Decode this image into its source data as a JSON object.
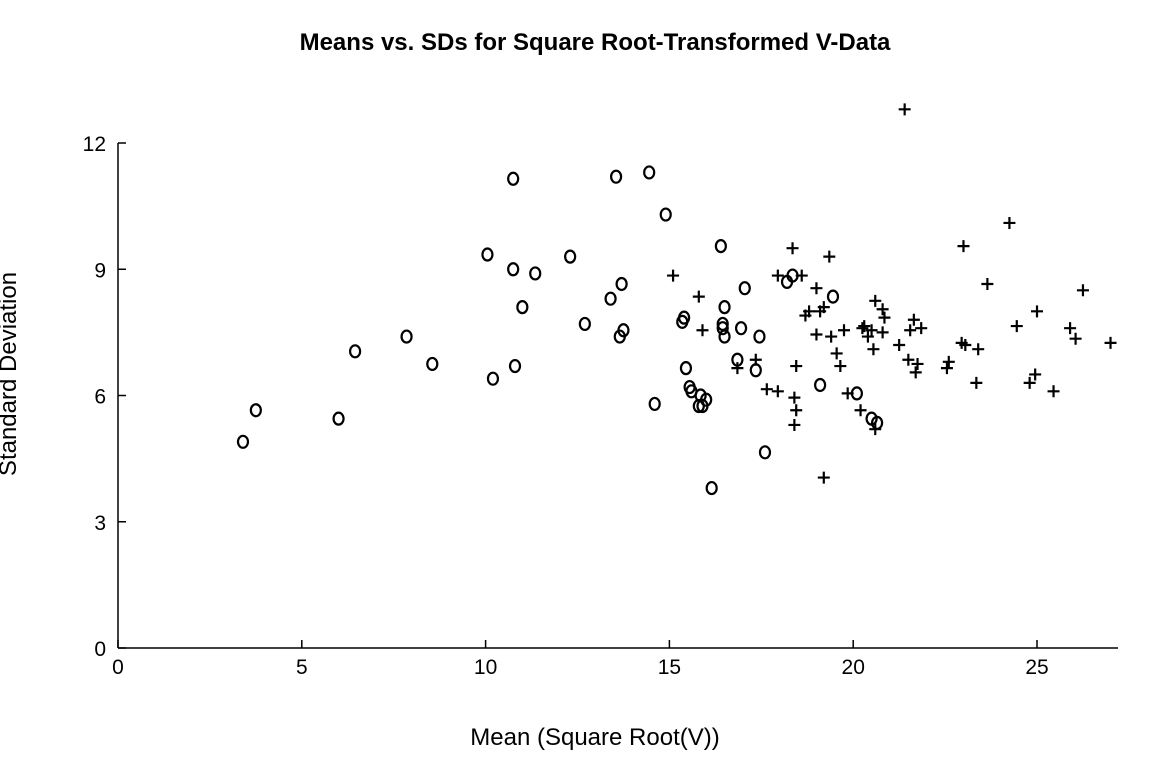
{
  "chart_data": {
    "type": "scatter",
    "title": "Means vs. SDs for Square Root-Transformed V-Data",
    "xlabel": "Mean (Square Root(V))",
    "ylabel": "Standard Deviation",
    "xlim": [
      0,
      27.3
    ],
    "ylim": [
      0,
      12.8
    ],
    "x_ticks": [
      0,
      5,
      10,
      15,
      20,
      25
    ],
    "y_ticks": [
      0,
      3,
      6,
      9,
      12
    ],
    "x_tick_labels": [
      "0",
      "5",
      "10",
      "15",
      "20",
      "25"
    ],
    "y_tick_labels": [
      "0",
      "3",
      "6",
      "9",
      "12"
    ],
    "grid": false,
    "legend": "none",
    "series": [
      {
        "marker": "o",
        "points": [
          [
            3.4,
            4.9
          ],
          [
            3.75,
            5.65
          ],
          [
            6.0,
            5.45
          ],
          [
            6.45,
            7.05
          ],
          [
            7.85,
            7.4
          ],
          [
            8.55,
            6.75
          ],
          [
            10.05,
            9.35
          ],
          [
            10.2,
            6.4
          ],
          [
            10.75,
            11.15
          ],
          [
            10.75,
            9.0
          ],
          [
            10.8,
            6.7
          ],
          [
            11.0,
            8.1
          ],
          [
            11.35,
            8.9
          ],
          [
            12.3,
            9.3
          ],
          [
            12.7,
            7.7
          ],
          [
            13.4,
            8.3
          ],
          [
            13.55,
            11.2
          ],
          [
            13.65,
            7.4
          ],
          [
            13.7,
            8.65
          ],
          [
            13.75,
            7.55
          ],
          [
            14.45,
            11.3
          ],
          [
            14.6,
            5.8
          ],
          [
            14.9,
            10.3
          ],
          [
            15.35,
            7.75
          ],
          [
            15.4,
            7.85
          ],
          [
            15.45,
            6.65
          ],
          [
            15.55,
            6.2
          ],
          [
            15.6,
            6.1
          ],
          [
            15.8,
            5.75
          ],
          [
            15.85,
            6.0
          ],
          [
            15.9,
            5.75
          ],
          [
            16.0,
            5.9
          ],
          [
            16.15,
            3.8
          ],
          [
            16.4,
            9.55
          ],
          [
            16.45,
            7.7
          ],
          [
            16.45,
            7.6
          ],
          [
            16.5,
            8.1
          ],
          [
            16.5,
            7.4
          ],
          [
            16.85,
            6.85
          ],
          [
            16.95,
            7.6
          ],
          [
            17.05,
            8.55
          ],
          [
            17.35,
            6.6
          ],
          [
            17.45,
            7.4
          ],
          [
            17.6,
            4.65
          ],
          [
            18.2,
            8.7
          ],
          [
            18.35,
            8.85
          ],
          [
            19.1,
            6.25
          ],
          [
            19.45,
            8.35
          ],
          [
            20.1,
            6.05
          ],
          [
            20.5,
            5.45
          ],
          [
            20.65,
            5.35
          ]
        ]
      },
      {
        "marker": "+",
        "points": [
          [
            15.1,
            8.85
          ],
          [
            15.8,
            8.35
          ],
          [
            15.9,
            7.55
          ],
          [
            16.85,
            6.65
          ],
          [
            17.35,
            6.85
          ],
          [
            17.65,
            6.15
          ],
          [
            17.95,
            6.1
          ],
          [
            17.95,
            8.85
          ],
          [
            18.35,
            9.5
          ],
          [
            18.4,
            5.95
          ],
          [
            18.45,
            6.7
          ],
          [
            18.4,
            5.3
          ],
          [
            18.45,
            5.65
          ],
          [
            18.6,
            8.85
          ],
          [
            18.7,
            7.9
          ],
          [
            18.8,
            8.0
          ],
          [
            19.0,
            8.55
          ],
          [
            19.0,
            7.45
          ],
          [
            19.1,
            8.0
          ],
          [
            19.2,
            4.05
          ],
          [
            19.2,
            8.1
          ],
          [
            19.35,
            9.3
          ],
          [
            19.4,
            7.4
          ],
          [
            19.55,
            7.0
          ],
          [
            19.65,
            6.7
          ],
          [
            19.75,
            7.55
          ],
          [
            19.85,
            6.05
          ],
          [
            20.2,
            5.65
          ],
          [
            20.25,
            7.6
          ],
          [
            20.3,
            7.65
          ],
          [
            20.4,
            7.4
          ],
          [
            20.5,
            7.55
          ],
          [
            20.55,
            7.1
          ],
          [
            20.6,
            8.25
          ],
          [
            20.6,
            5.2
          ],
          [
            20.8,
            8.05
          ],
          [
            20.8,
            7.5
          ],
          [
            20.85,
            7.85
          ],
          [
            21.25,
            7.2
          ],
          [
            21.4,
            12.8
          ],
          [
            21.5,
            6.85
          ],
          [
            21.55,
            7.55
          ],
          [
            21.65,
            7.8
          ],
          [
            21.7,
            6.55
          ],
          [
            21.75,
            6.75
          ],
          [
            21.85,
            7.6
          ],
          [
            22.55,
            6.65
          ],
          [
            22.6,
            6.8
          ],
          [
            22.95,
            7.25
          ],
          [
            23.0,
            9.55
          ],
          [
            23.05,
            7.2
          ],
          [
            23.35,
            6.3
          ],
          [
            23.4,
            7.1
          ],
          [
            23.65,
            8.65
          ],
          [
            24.25,
            10.1
          ],
          [
            24.45,
            7.65
          ],
          [
            24.8,
            6.3
          ],
          [
            24.95,
            6.5
          ],
          [
            25.0,
            8.0
          ],
          [
            25.45,
            6.1
          ],
          [
            25.9,
            7.6
          ],
          [
            26.05,
            7.35
          ],
          [
            26.25,
            8.5
          ],
          [
            27.0,
            7.25
          ]
        ]
      }
    ]
  }
}
